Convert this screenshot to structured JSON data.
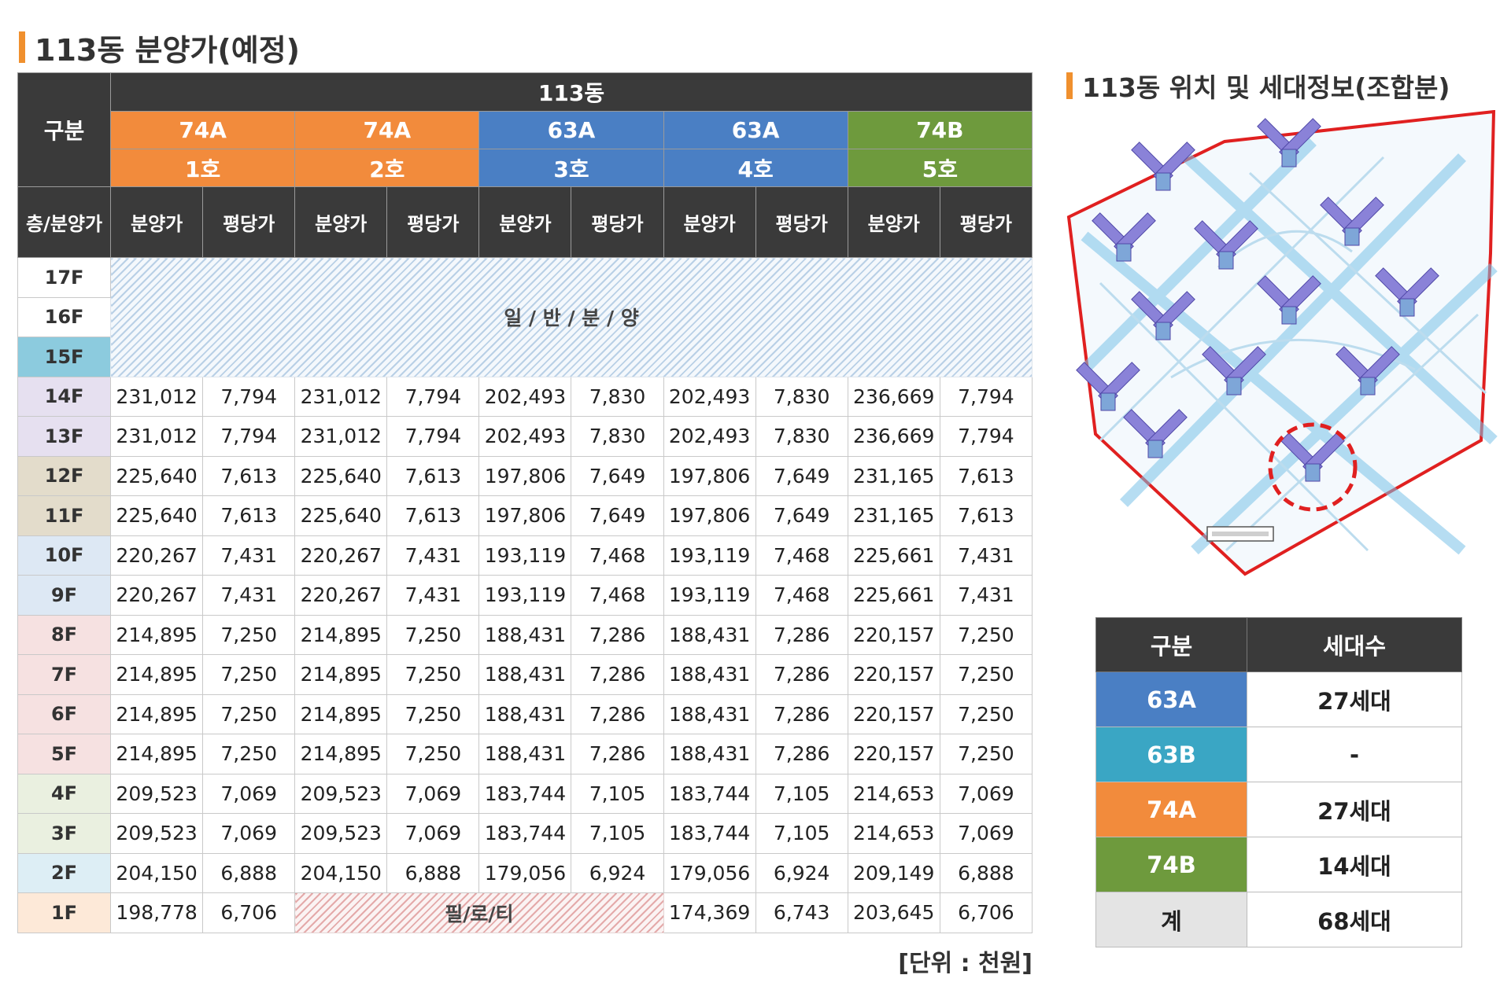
{
  "title": "113동 분양가(예정)",
  "side_title": "113동 위치 및 세대정보(조합분)",
  "table": {
    "corner": "구분",
    "building": "113동",
    "floor_header": "층/분양가",
    "types": [
      {
        "type": "74A",
        "unit": "1호",
        "color": "#f28b3c"
      },
      {
        "type": "74A",
        "unit": "2호",
        "color": "#f28b3c"
      },
      {
        "type": "63A",
        "unit": "3호",
        "color": "#4a7fc4"
      },
      {
        "type": "63A",
        "unit": "4호",
        "color": "#4a7fc4"
      },
      {
        "type": "74B",
        "unit": "5호",
        "color": "#6e9a3d"
      }
    ],
    "col_price": "분양가",
    "col_per_pyeong": "평당가",
    "general_sale_label": "일 / 반 / 분 / 양",
    "piloti_label": "필/로/티",
    "rows": [
      {
        "floor": "17F",
        "color": "#ffffff"
      },
      {
        "floor": "16F",
        "color": "#ffffff"
      },
      {
        "floor": "15F",
        "color": "#8ccbde"
      },
      {
        "floor": "14F",
        "color": "#e6e0f0",
        "values": [
          "231,012",
          "7,794",
          "231,012",
          "7,794",
          "202,493",
          "7,830",
          "202,493",
          "7,830",
          "236,669",
          "7,794"
        ]
      },
      {
        "floor": "13F",
        "color": "#e6e0f0",
        "values": [
          "231,012",
          "7,794",
          "231,012",
          "7,794",
          "202,493",
          "7,830",
          "202,493",
          "7,830",
          "236,669",
          "7,794"
        ]
      },
      {
        "floor": "12F",
        "color": "#e3dccb",
        "values": [
          "225,640",
          "7,613",
          "225,640",
          "7,613",
          "197,806",
          "7,649",
          "197,806",
          "7,649",
          "231,165",
          "7,613"
        ]
      },
      {
        "floor": "11F",
        "color": "#e3dccb",
        "values": [
          "225,640",
          "7,613",
          "225,640",
          "7,613",
          "197,806",
          "7,649",
          "197,806",
          "7,649",
          "231,165",
          "7,613"
        ]
      },
      {
        "floor": "10F",
        "color": "#dde8f4",
        "values": [
          "220,267",
          "7,431",
          "220,267",
          "7,431",
          "193,119",
          "7,468",
          "193,119",
          "7,468",
          "225,661",
          "7,431"
        ]
      },
      {
        "floor": "9F",
        "color": "#dde8f4",
        "values": [
          "220,267",
          "7,431",
          "220,267",
          "7,431",
          "193,119",
          "7,468",
          "193,119",
          "7,468",
          "225,661",
          "7,431"
        ]
      },
      {
        "floor": "8F",
        "color": "#f6e1e1",
        "values": [
          "214,895",
          "7,250",
          "214,895",
          "7,250",
          "188,431",
          "7,286",
          "188,431",
          "7,286",
          "220,157",
          "7,250"
        ]
      },
      {
        "floor": "7F",
        "color": "#f6e1e1",
        "values": [
          "214,895",
          "7,250",
          "214,895",
          "7,250",
          "188,431",
          "7,286",
          "188,431",
          "7,286",
          "220,157",
          "7,250"
        ]
      },
      {
        "floor": "6F",
        "color": "#f6e1e1",
        "values": [
          "214,895",
          "7,250",
          "214,895",
          "7,250",
          "188,431",
          "7,286",
          "188,431",
          "7,286",
          "220,157",
          "7,250"
        ]
      },
      {
        "floor": "5F",
        "color": "#f6e1e1",
        "values": [
          "214,895",
          "7,250",
          "214,895",
          "7,250",
          "188,431",
          "7,286",
          "188,431",
          "7,286",
          "220,157",
          "7,250"
        ]
      },
      {
        "floor": "4F",
        "color": "#eaf0e0",
        "values": [
          "209,523",
          "7,069",
          "209,523",
          "7,069",
          "183,744",
          "7,105",
          "183,744",
          "7,105",
          "214,653",
          "7,069"
        ]
      },
      {
        "floor": "3F",
        "color": "#eaf0e0",
        "values": [
          "209,523",
          "7,069",
          "209,523",
          "7,069",
          "183,744",
          "7,105",
          "183,744",
          "7,105",
          "214,653",
          "7,069"
        ]
      },
      {
        "floor": "2F",
        "color": "#ddeef5",
        "values": [
          "204,150",
          "6,888",
          "204,150",
          "6,888",
          "179,056",
          "6,924",
          "179,056",
          "6,924",
          "209,149",
          "6,888"
        ]
      },
      {
        "floor": "1F",
        "color": "#fde9d8",
        "values": [
          "198,778",
          "6,706",
          "174,369",
          "6,743",
          "203,645",
          "6,706"
        ]
      }
    ]
  },
  "unit_note": "[단위 : 천원]",
  "summary": {
    "col_type": "구분",
    "col_count": "세대수",
    "rows": [
      {
        "type": "63A",
        "count": "27세대",
        "color": "#4a7fc4"
      },
      {
        "type": "63B",
        "count": "-",
        "color": "#3aa6c4"
      },
      {
        "type": "74A",
        "count": "27세대",
        "color": "#f28b3c"
      },
      {
        "type": "74B",
        "count": "14세대",
        "color": "#6e9a3d"
      },
      {
        "type": "계",
        "count": "68세대",
        "color": "#e4e4e4"
      }
    ]
  },
  "map": {
    "icon": "site-plan-map",
    "highlight_color": "#e02020",
    "building_color": "#8a82d8"
  }
}
